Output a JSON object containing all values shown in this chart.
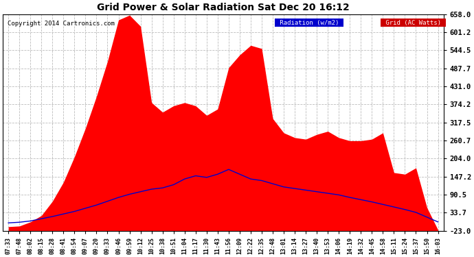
{
  "title": "Grid Power & Solar Radiation Sat Dec 20 16:12",
  "copyright": "Copyright 2014 Cartronics.com",
  "yticks": [
    658.0,
    601.2,
    544.5,
    487.7,
    431.0,
    374.2,
    317.5,
    260.7,
    204.0,
    147.2,
    90.5,
    33.7,
    -23.0
  ],
  "ymin": -23.0,
  "ymax": 658.0,
  "bg_color": "#ffffff",
  "grid_color": "#aaaaaa",
  "fill_color": "#ff0000",
  "line_color": "#0000cc",
  "xtick_labels": [
    "07:33",
    "07:48",
    "08:02",
    "08:15",
    "08:28",
    "08:41",
    "08:54",
    "09:07",
    "09:20",
    "09:33",
    "09:46",
    "09:59",
    "10:12",
    "10:25",
    "10:38",
    "10:51",
    "11:04",
    "11:17",
    "11:30",
    "11:43",
    "11:56",
    "12:09",
    "12:22",
    "12:35",
    "12:48",
    "13:01",
    "13:14",
    "13:27",
    "13:40",
    "13:53",
    "14:06",
    "14:19",
    "14:32",
    "14:45",
    "14:58",
    "15:11",
    "15:24",
    "15:37",
    "15:50",
    "16:03"
  ],
  "grid_values": [
    -10,
    -8,
    5,
    25,
    70,
    130,
    210,
    300,
    400,
    510,
    640,
    655,
    620,
    380,
    350,
    370,
    380,
    370,
    340,
    360,
    490,
    530,
    560,
    550,
    330,
    285,
    270,
    265,
    280,
    290,
    270,
    260,
    260,
    265,
    285,
    160,
    155,
    175,
    50,
    -20
  ],
  "radiation_values": [
    2,
    4,
    8,
    15,
    22,
    30,
    38,
    48,
    58,
    70,
    82,
    92,
    100,
    108,
    112,
    122,
    140,
    150,
    145,
    155,
    170,
    155,
    140,
    135,
    125,
    115,
    110,
    105,
    100,
    95,
    90,
    82,
    75,
    68,
    60,
    52,
    44,
    35,
    20,
    5
  ]
}
